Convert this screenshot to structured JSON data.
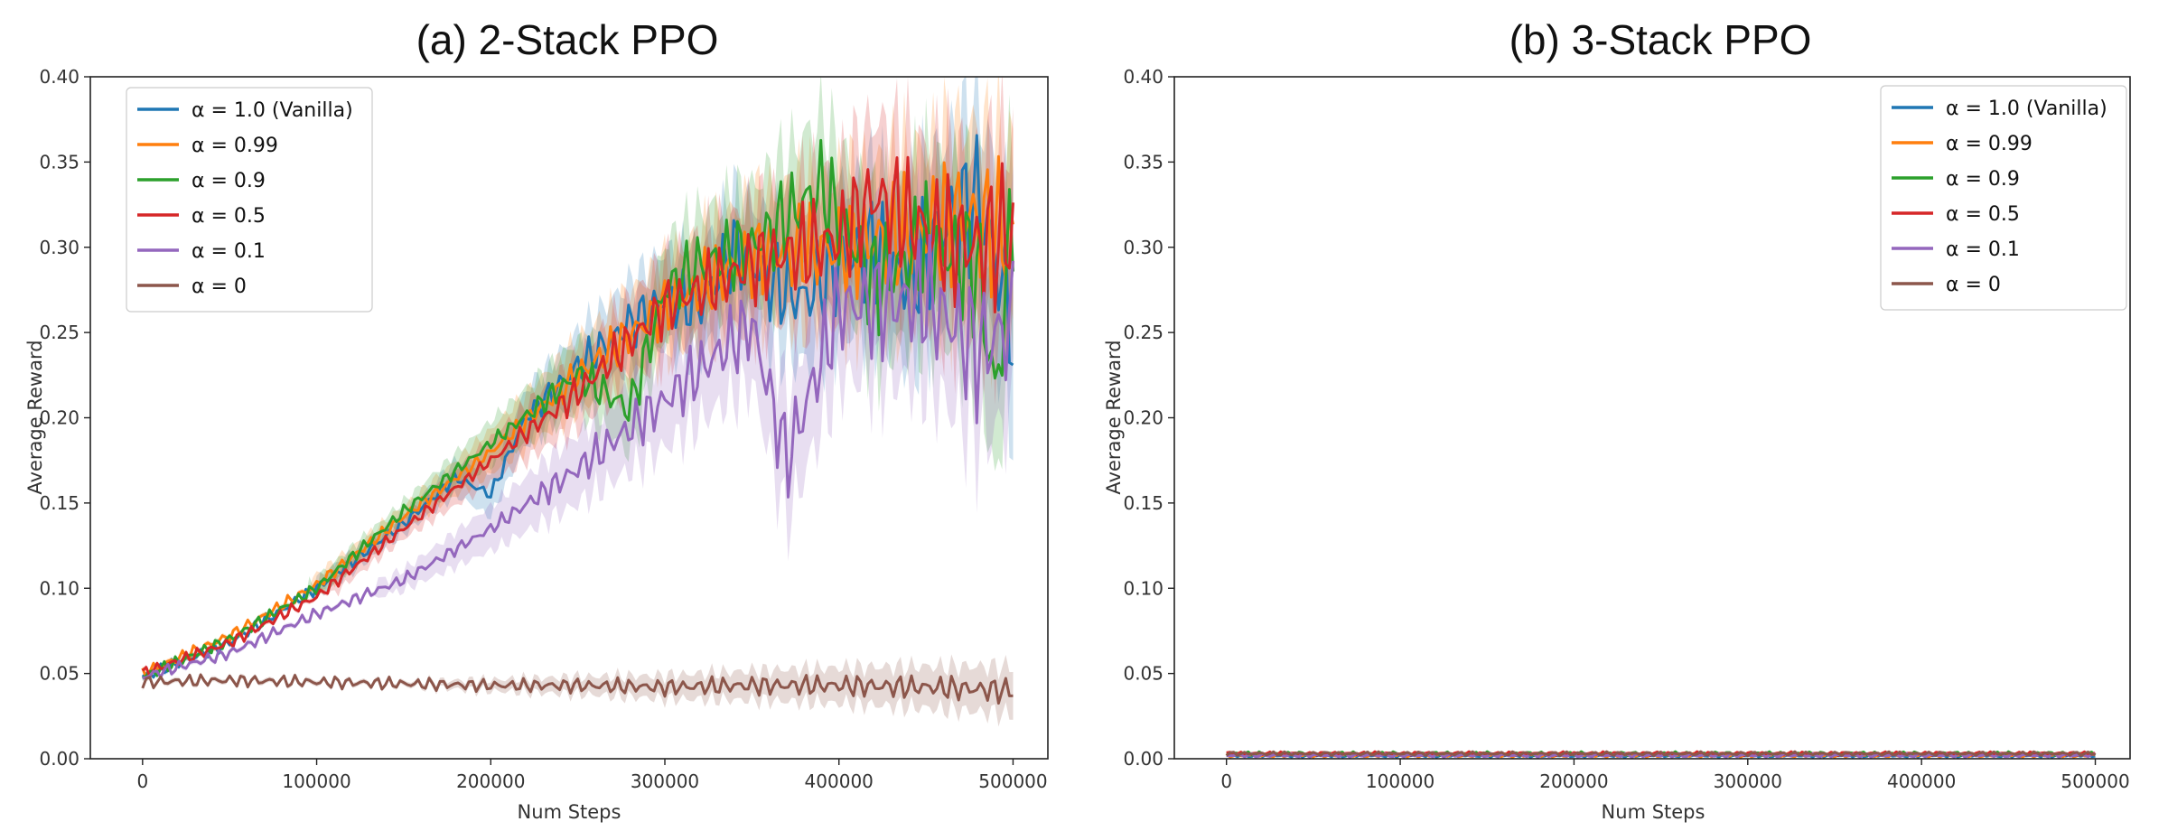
{
  "colors": {
    "blue": "#1f77b4",
    "orange": "#ff7f0e",
    "green": "#2ca02c",
    "red": "#d62728",
    "purple": "#9467bd",
    "brown": "#8c564b"
  },
  "chart_data": [
    {
      "type": "line",
      "title": "(a) 2-Stack PPO",
      "xlabel": "Num Steps",
      "ylabel": "Average Reward",
      "xlim": [
        -30000,
        520000
      ],
      "ylim": [
        0.0,
        0.4
      ],
      "xticks": [
        0,
        100000,
        200000,
        300000,
        400000,
        500000
      ],
      "yticks": [
        "0.00",
        "0.05",
        "0.10",
        "0.15",
        "0.20",
        "0.25",
        "0.30",
        "0.35",
        "0.40"
      ],
      "grid": false,
      "legend_position": "top-left",
      "shaded_band": true,
      "series": [
        {
          "name": "α = 1.0 (Vanilla)",
          "color": "blue",
          "x": [
            0,
            50000,
            100000,
            150000,
            180000,
            200000,
            220000,
            250000,
            280000,
            300000,
            320000,
            340000,
            360000,
            380000,
            400000,
            420000,
            440000,
            460000,
            480000,
            500000
          ],
          "y": [
            0.048,
            0.068,
            0.1,
            0.138,
            0.165,
            0.155,
            0.2,
            0.23,
            0.255,
            0.27,
            0.265,
            0.3,
            0.28,
            0.27,
            0.29,
            0.3,
            0.28,
            0.31,
            0.33,
            0.255
          ]
        },
        {
          "name": "α = 0.99",
          "color": "orange",
          "x": [
            0,
            50000,
            100000,
            150000,
            200000,
            250000,
            300000,
            350000,
            400000,
            450000,
            470000,
            500000
          ],
          "y": [
            0.05,
            0.072,
            0.102,
            0.142,
            0.18,
            0.225,
            0.265,
            0.295,
            0.3,
            0.31,
            0.32,
            0.305
          ]
        },
        {
          "name": "α = 0.9",
          "color": "green",
          "x": [
            0,
            50000,
            100000,
            150000,
            200000,
            250000,
            280000,
            300000,
            320000,
            350000,
            390000,
            420000,
            450000,
            480000,
            490000,
            500000
          ],
          "y": [
            0.048,
            0.07,
            0.1,
            0.145,
            0.185,
            0.225,
            0.205,
            0.275,
            0.29,
            0.3,
            0.335,
            0.28,
            0.3,
            0.29,
            0.21,
            0.32
          ]
        },
        {
          "name": "α = 0.5",
          "color": "red",
          "x": [
            0,
            50000,
            100000,
            150000,
            200000,
            250000,
            300000,
            350000,
            400000,
            420000,
            450000,
            480000,
            500000
          ],
          "y": [
            0.05,
            0.068,
            0.095,
            0.135,
            0.175,
            0.215,
            0.265,
            0.29,
            0.305,
            0.33,
            0.31,
            0.3,
            0.31
          ]
        },
        {
          "name": "α = 0.1",
          "color": "purple",
          "x": [
            0,
            50000,
            100000,
            150000,
            200000,
            250000,
            300000,
            350000,
            370000,
            400000,
            450000,
            480000,
            500000
          ],
          "y": [
            0.048,
            0.062,
            0.085,
            0.105,
            0.135,
            0.17,
            0.21,
            0.255,
            0.175,
            0.265,
            0.27,
            0.24,
            0.255
          ]
        },
        {
          "name": "α = 0",
          "color": "brown",
          "x": [
            0,
            50000,
            100000,
            150000,
            200000,
            250000,
            300000,
            350000,
            400000,
            450000,
            500000
          ],
          "y": [
            0.045,
            0.046,
            0.045,
            0.044,
            0.043,
            0.043,
            0.042,
            0.043,
            0.043,
            0.042,
            0.04
          ]
        }
      ]
    },
    {
      "type": "line",
      "title": "(b) 3-Stack PPO",
      "xlabel": "Num Steps",
      "ylabel": "Average Reward",
      "xlim": [
        -30000,
        520000
      ],
      "ylim": [
        0.0,
        0.4
      ],
      "xticks": [
        0,
        100000,
        200000,
        300000,
        400000,
        500000
      ],
      "yticks": [
        "0.00",
        "0.05",
        "0.10",
        "0.15",
        "0.20",
        "0.25",
        "0.30",
        "0.35",
        "0.40"
      ],
      "grid": false,
      "legend_position": "top-right",
      "shaded_band": false,
      "series": [
        {
          "name": "α = 1.0 (Vanilla)",
          "color": "blue",
          "x": [
            0,
            100000,
            200000,
            300000,
            400000,
            500000
          ],
          "y": [
            0.002,
            0.002,
            0.002,
            0.002,
            0.002,
            0.002
          ]
        },
        {
          "name": "α = 0.99",
          "color": "orange",
          "x": [
            0,
            100000,
            200000,
            300000,
            400000,
            500000
          ],
          "y": [
            0.002,
            0.002,
            0.002,
            0.002,
            0.002,
            0.002
          ]
        },
        {
          "name": "α = 0.9",
          "color": "green",
          "x": [
            0,
            100000,
            200000,
            300000,
            400000,
            500000
          ],
          "y": [
            0.003,
            0.003,
            0.003,
            0.003,
            0.003,
            0.003
          ]
        },
        {
          "name": "α = 0.5",
          "color": "red",
          "x": [
            0,
            100000,
            200000,
            300000,
            400000,
            500000
          ],
          "y": [
            0.003,
            0.003,
            0.003,
            0.003,
            0.003,
            0.003
          ]
        },
        {
          "name": "α = 0.1",
          "color": "purple",
          "x": [
            0,
            100000,
            200000,
            300000,
            400000,
            500000
          ],
          "y": [
            0.002,
            0.002,
            0.002,
            0.002,
            0.002,
            0.002
          ]
        },
        {
          "name": "α = 0",
          "color": "brown",
          "x": [
            0,
            100000,
            200000,
            300000,
            400000,
            500000
          ],
          "y": [
            0.003,
            0.003,
            0.003,
            0.003,
            0.003,
            0.003
          ]
        }
      ]
    }
  ]
}
